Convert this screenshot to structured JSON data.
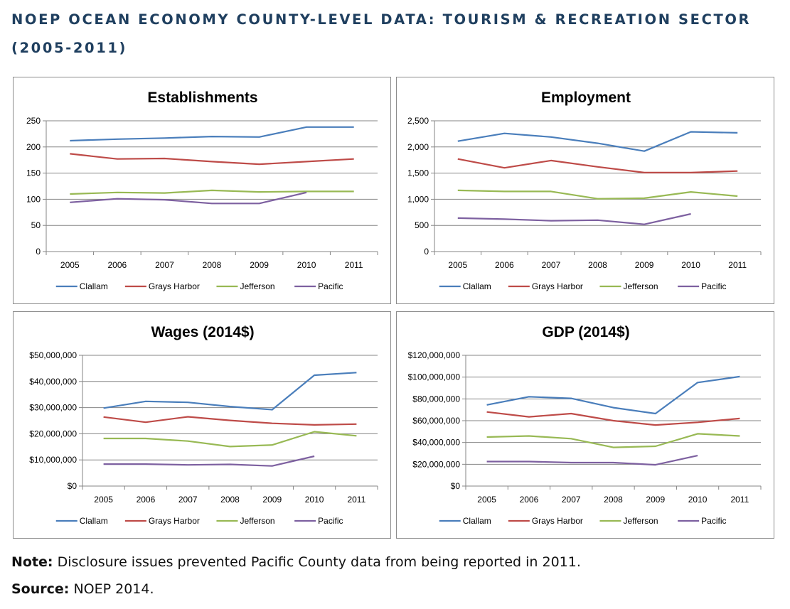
{
  "header": {
    "title": "NOEP OCEAN ECONOMY COUNTY-LEVEL DATA:  TOURISM & RECREATION SECTOR (2005-2011)"
  },
  "footer": {
    "note_label": "Note:",
    "note_text": "Disclosure issues prevented Pacific County data from being reported in 2011.",
    "source_label": "Source:",
    "source_text": "NOEP 2014."
  },
  "colors": {
    "Clallam": "#4a7ebb",
    "Grays Harbor": "#be4b48",
    "Jefferson": "#98b954",
    "Pacific": "#7d60a0"
  },
  "chart_data": [
    {
      "type": "line",
      "title": "Establishments",
      "x": [
        "2005",
        "2006",
        "2007",
        "2008",
        "2009",
        "2010",
        "2011"
      ],
      "ylim": [
        0,
        250
      ],
      "yticks": [
        0,
        50,
        100,
        150,
        200,
        250
      ],
      "ytick_labels": [
        "0",
        "50",
        "100",
        "150",
        "200",
        "250"
      ],
      "grid": true,
      "legend": "bottom",
      "series": [
        {
          "name": "Clallam",
          "values": [
            212,
            215,
            217,
            220,
            219,
            238,
            238
          ]
        },
        {
          "name": "Grays Harbor",
          "values": [
            187,
            177,
            178,
            172,
            167,
            172,
            177
          ]
        },
        {
          "name": "Jefferson",
          "values": [
            110,
            113,
            112,
            117,
            114,
            115,
            115
          ]
        },
        {
          "name": "Pacific",
          "values": [
            94,
            101,
            99,
            92,
            92,
            113,
            null
          ]
        }
      ]
    },
    {
      "type": "line",
      "title": "Employment",
      "x": [
        "2005",
        "2006",
        "2007",
        "2008",
        "2009",
        "2010",
        "2011"
      ],
      "ylim": [
        0,
        2500
      ],
      "yticks": [
        0,
        500,
        1000,
        1500,
        2000,
        2500
      ],
      "ytick_labels": [
        "0",
        "500",
        "1,000",
        "1,500",
        "2,000",
        "2,500"
      ],
      "grid": true,
      "legend": "bottom",
      "series": [
        {
          "name": "Clallam",
          "values": [
            2110,
            2260,
            2190,
            2070,
            1920,
            2290,
            2270
          ]
        },
        {
          "name": "Grays Harbor",
          "values": [
            1770,
            1600,
            1740,
            1620,
            1510,
            1510,
            1540
          ]
        },
        {
          "name": "Jefferson",
          "values": [
            1170,
            1150,
            1150,
            1010,
            1020,
            1140,
            1060
          ]
        },
        {
          "name": "Pacific",
          "values": [
            640,
            620,
            590,
            600,
            520,
            720,
            null
          ]
        }
      ]
    },
    {
      "type": "line",
      "title": "Wages (2014$)",
      "x": [
        "2005",
        "2006",
        "2007",
        "2008",
        "2009",
        "2010",
        "2011"
      ],
      "ylim": [
        0,
        50000000
      ],
      "yticks": [
        0,
        10000000,
        20000000,
        30000000,
        40000000,
        50000000
      ],
      "ytick_labels": [
        "$0",
        "$10,000,000",
        "$20,000,000",
        "$30,000,000",
        "$40,000,000",
        "$50,000,000"
      ],
      "grid": true,
      "legend": "bottom",
      "series": [
        {
          "name": "Clallam",
          "values": [
            29800000,
            32400000,
            32000000,
            30400000,
            29200000,
            42400000,
            43400000
          ]
        },
        {
          "name": "Grays Harbor",
          "values": [
            26400000,
            24400000,
            26500000,
            25100000,
            24000000,
            23400000,
            23700000
          ]
        },
        {
          "name": "Jefferson",
          "values": [
            18200000,
            18200000,
            17200000,
            15100000,
            15700000,
            20800000,
            19200000
          ]
        },
        {
          "name": "Pacific",
          "values": [
            8400000,
            8400000,
            8100000,
            8300000,
            7700000,
            11400000,
            null
          ]
        }
      ]
    },
    {
      "type": "line",
      "title": "GDP (2014$)",
      "x": [
        "2005",
        "2006",
        "2007",
        "2008",
        "2009",
        "2010",
        "2011"
      ],
      "ylim": [
        0,
        120000000
      ],
      "yticks": [
        0,
        20000000,
        40000000,
        60000000,
        80000000,
        100000000,
        120000000
      ],
      "ytick_labels": [
        "$0",
        "$20,000,000",
        "$40,000,000",
        "$60,000,000",
        "$80,000,000",
        "$100,000,000",
        "$120,000,000"
      ],
      "grid": true,
      "legend": "bottom",
      "series": [
        {
          "name": "Clallam",
          "values": [
            74500000,
            82000000,
            80500000,
            72000000,
            66500000,
            95000000,
            100500000
          ]
        },
        {
          "name": "Grays Harbor",
          "values": [
            68000000,
            63500000,
            66500000,
            60000000,
            56000000,
            58500000,
            62000000
          ]
        },
        {
          "name": "Jefferson",
          "values": [
            45000000,
            46000000,
            43500000,
            35500000,
            36500000,
            48000000,
            46000000
          ]
        },
        {
          "name": "Pacific",
          "values": [
            22500000,
            22500000,
            21500000,
            21500000,
            19500000,
            28000000,
            null
          ]
        }
      ]
    }
  ]
}
